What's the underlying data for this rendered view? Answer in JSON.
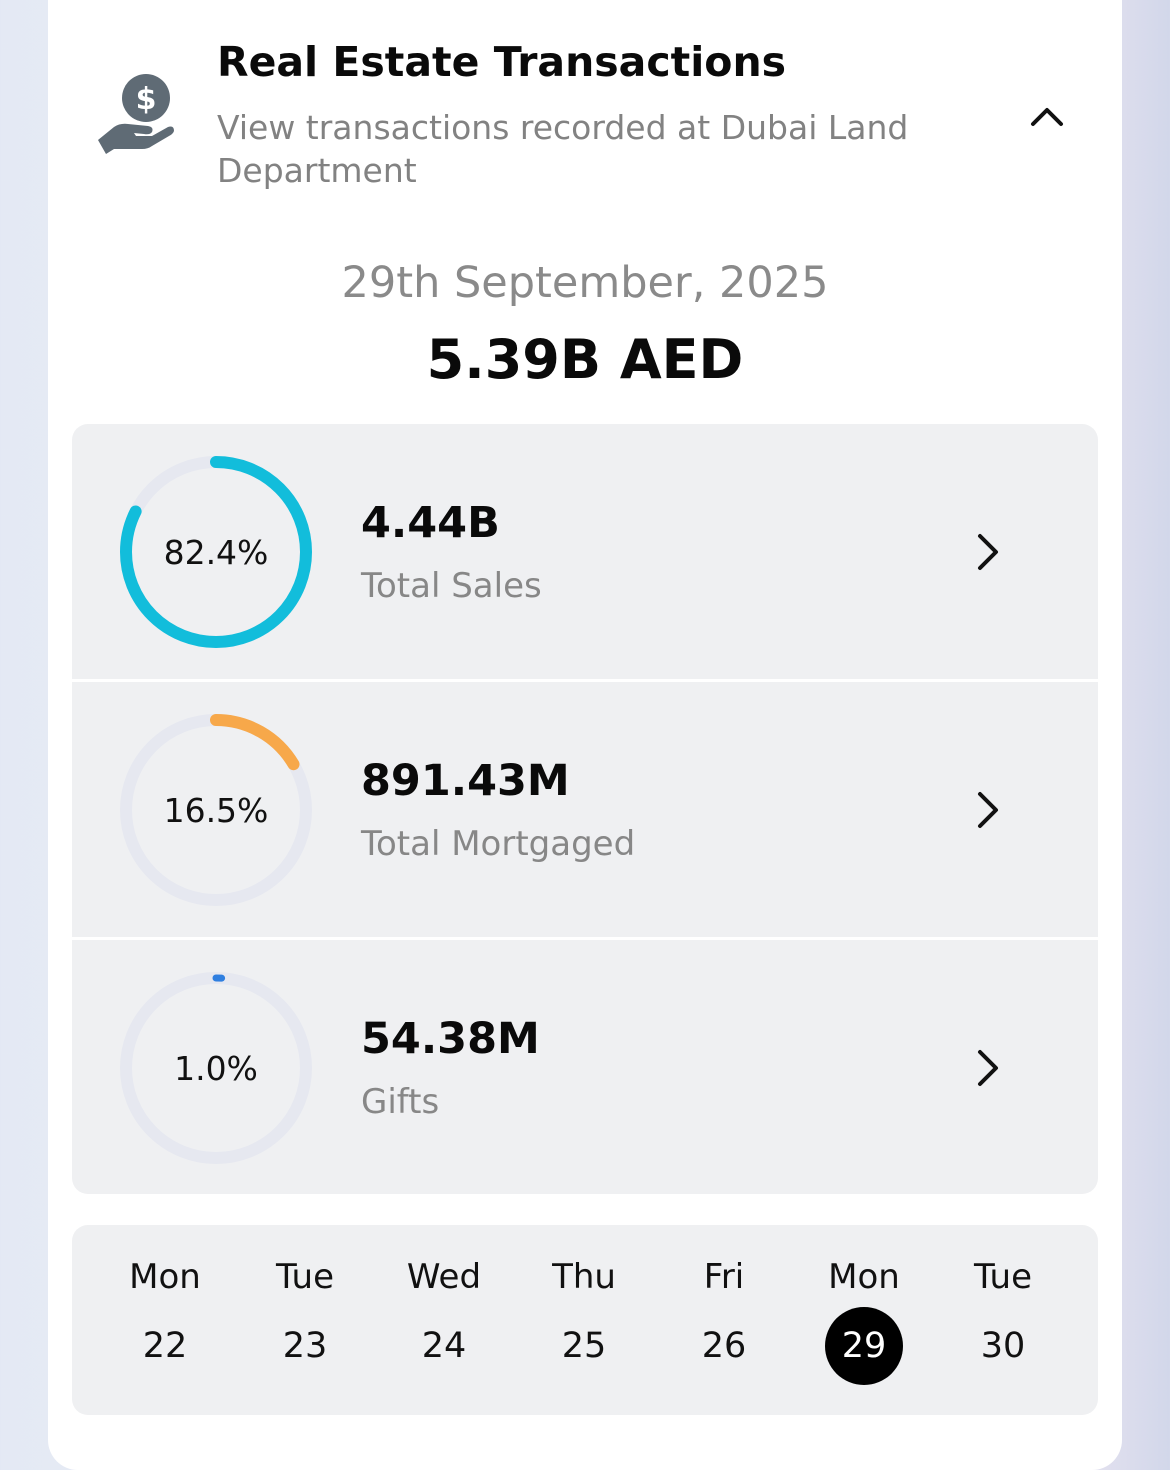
{
  "header": {
    "title": "Real Estate Transactions",
    "subtitle": "View transactions recorded at Dubai Land Department",
    "icon": "money-hand-icon",
    "collapse_icon": "chevron-up-icon"
  },
  "summary": {
    "date": "29th September, 2025",
    "total": "5.39B AED"
  },
  "stats": [
    {
      "percent_label": "82.4%",
      "percent": 82.4,
      "value": "4.44B",
      "label": "Total Sales",
      "color": "#12bddb"
    },
    {
      "percent_label": "16.5%",
      "percent": 16.5,
      "value": "891.43M",
      "label": "Total Mortgaged",
      "color": "#f7a84a"
    },
    {
      "percent_label": "1.0%",
      "percent": 1.0,
      "value": "54.38M",
      "label": "Gifts",
      "color": "#2f7fe0"
    }
  ],
  "calendar": {
    "days": [
      {
        "name": "Mon",
        "num": "22"
      },
      {
        "name": "Tue",
        "num": "23"
      },
      {
        "name": "Wed",
        "num": "24"
      },
      {
        "name": "Thu",
        "num": "25"
      },
      {
        "name": "Fri",
        "num": "26"
      },
      {
        "name": "Mon",
        "num": "29"
      },
      {
        "name": "Tue",
        "num": "30"
      }
    ],
    "selected_index": 5
  },
  "colors": {
    "ring_track": "#e6e8f0",
    "icon_gray": "#5f6b75"
  }
}
